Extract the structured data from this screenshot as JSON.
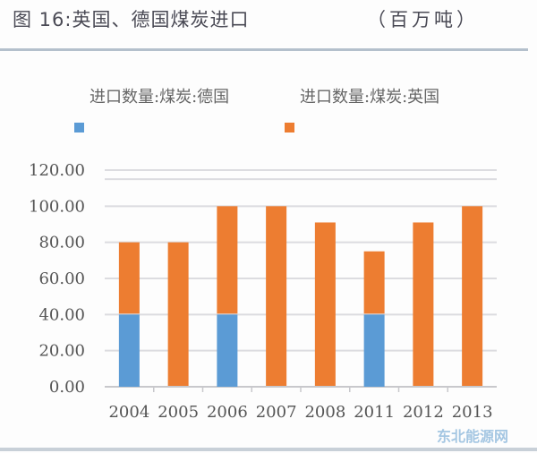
{
  "header": {
    "title": "图 16:英国、德国煤炭进口",
    "unit": "（百万吨）"
  },
  "watermark": "东北能源网",
  "chart_data": {
    "type": "bar",
    "stacked": true,
    "title": "图 16:英国、德国煤炭进口",
    "ylabel": "百万吨",
    "categories": [
      "2004",
      "2005",
      "2006",
      "2007",
      "2008",
      "2011",
      "2012",
      "2013"
    ],
    "series": [
      {
        "name": "进口数量:煤炭:德国",
        "color": "#5b9bd5",
        "values": [
          40,
          0,
          40,
          0,
          0,
          40,
          0,
          0
        ]
      },
      {
        "name": "进口数量:煤炭:英国",
        "color": "#ed7d31",
        "values": [
          40,
          80,
          60,
          100,
          91,
          35,
          91,
          100
        ]
      }
    ],
    "yticks": [
      "0.00",
      "20.00",
      "40.00",
      "60.00",
      "80.00",
      "100.00",
      "120.00"
    ],
    "ylim": [
      0,
      120
    ],
    "grid": true,
    "legend": "top"
  }
}
